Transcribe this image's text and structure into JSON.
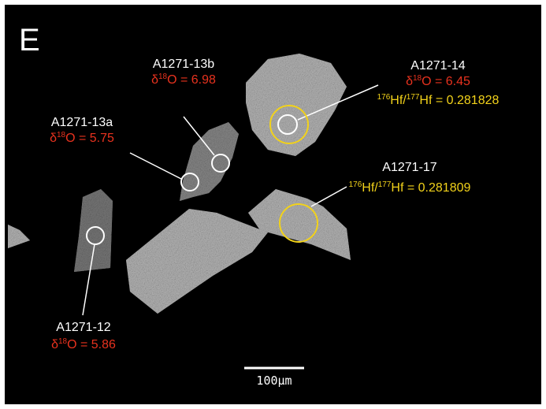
{
  "panel_label": "E",
  "scale_bar": "100μm",
  "spots": [
    {
      "name": "A1271-13b",
      "d18O": {
        "symbol": "δ",
        "sup": "18",
        "text": "O = 6.98"
      }
    },
    {
      "name": "A1271-13a",
      "d18O": {
        "symbol": "δ",
        "sup": "18",
        "text": "O = 5.75"
      }
    },
    {
      "name": "A1271-14",
      "d18O": {
        "symbol": "δ",
        "sup": "18",
        "text": "O = 6.45"
      },
      "hf": {
        "sup1": "176",
        "mid": "Hf/",
        "sup2": "177",
        "text": "Hf = 0.281828"
      }
    },
    {
      "name": "A1271-17",
      "hf": {
        "sup1": "176",
        "mid": "Hf/",
        "sup2": "177",
        "text": "Hf = 0.281809"
      }
    },
    {
      "name": "A1271-12",
      "d18O": {
        "symbol": "δ",
        "sup": "18",
        "text": "O = 5.86"
      }
    }
  ]
}
